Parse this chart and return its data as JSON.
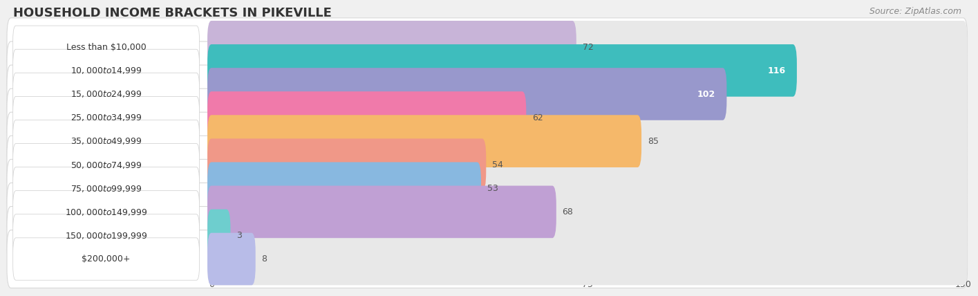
{
  "title": "HOUSEHOLD INCOME BRACKETS IN PIKEVILLE",
  "source": "Source: ZipAtlas.com",
  "categories": [
    "Less than $10,000",
    "$10,000 to $14,999",
    "$15,000 to $24,999",
    "$25,000 to $34,999",
    "$35,000 to $49,999",
    "$50,000 to $74,999",
    "$75,000 to $99,999",
    "$100,000 to $149,999",
    "$150,000 to $199,999",
    "$200,000+"
  ],
  "values": [
    72,
    116,
    102,
    62,
    85,
    54,
    53,
    68,
    3,
    8
  ],
  "bar_colors": [
    "#c8b4d8",
    "#3ebdbd",
    "#9898cc",
    "#f07aaa",
    "#f5b86a",
    "#f09888",
    "#88b8e0",
    "#c0a0d4",
    "#6ecece",
    "#b8bce8"
  ],
  "xlim_min": -40,
  "xlim_max": 150,
  "data_min": 0,
  "data_max": 150,
  "xticks": [
    0,
    75,
    150
  ],
  "background_color": "#f0f0f0",
  "row_bg_color": "#ffffff",
  "bar_bg_color": "#e8e8e8",
  "row_edge_color": "#d8d8d8",
  "label_pill_color": "#ffffff",
  "label_pill_edge": "#cccccc",
  "value_inside_color": "white",
  "value_outside_color": "#555555",
  "inside_threshold": 100,
  "label_fontsize": 9,
  "value_fontsize": 9,
  "title_fontsize": 13,
  "source_fontsize": 9
}
